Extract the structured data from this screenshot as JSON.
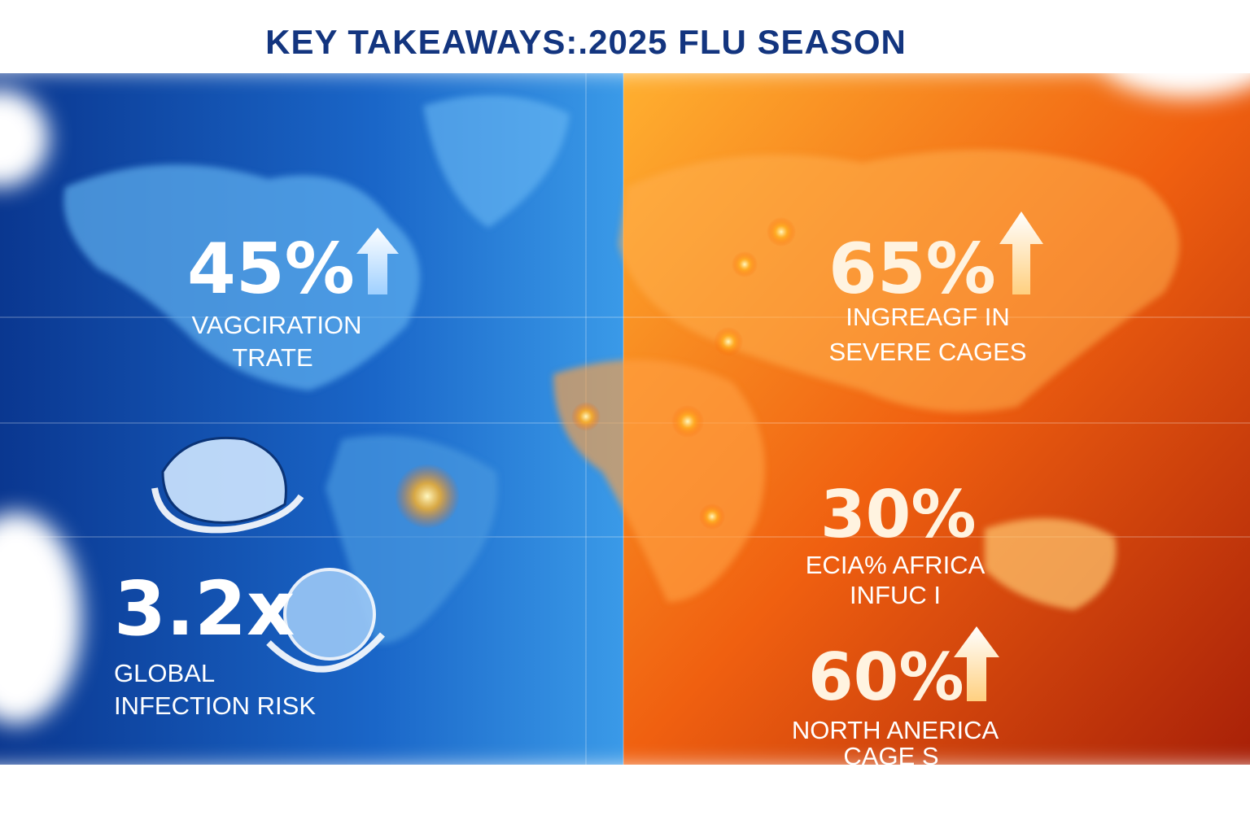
{
  "title": "KEY TAKEAWAYS:.2025 FLU SEASON",
  "stats": [
    {
      "value": "45%",
      "lines": [
        "VAGCIRATION",
        "TRATE"
      ]
    },
    {
      "value": "3.2x",
      "lines": [
        "GLOBAL",
        "INFECTION RISK"
      ]
    },
    {
      "value": "65%",
      "lines": [
        "INGREAGF IN",
        "SEVERE  CAGES"
      ]
    },
    {
      "value": "30%",
      "lines": [
        "ECIA% AFRICA",
        "INFUC I"
      ]
    },
    {
      "value": "60%",
      "lines": [
        "NORTH ANERICA",
        "CAGE S"
      ]
    }
  ]
}
